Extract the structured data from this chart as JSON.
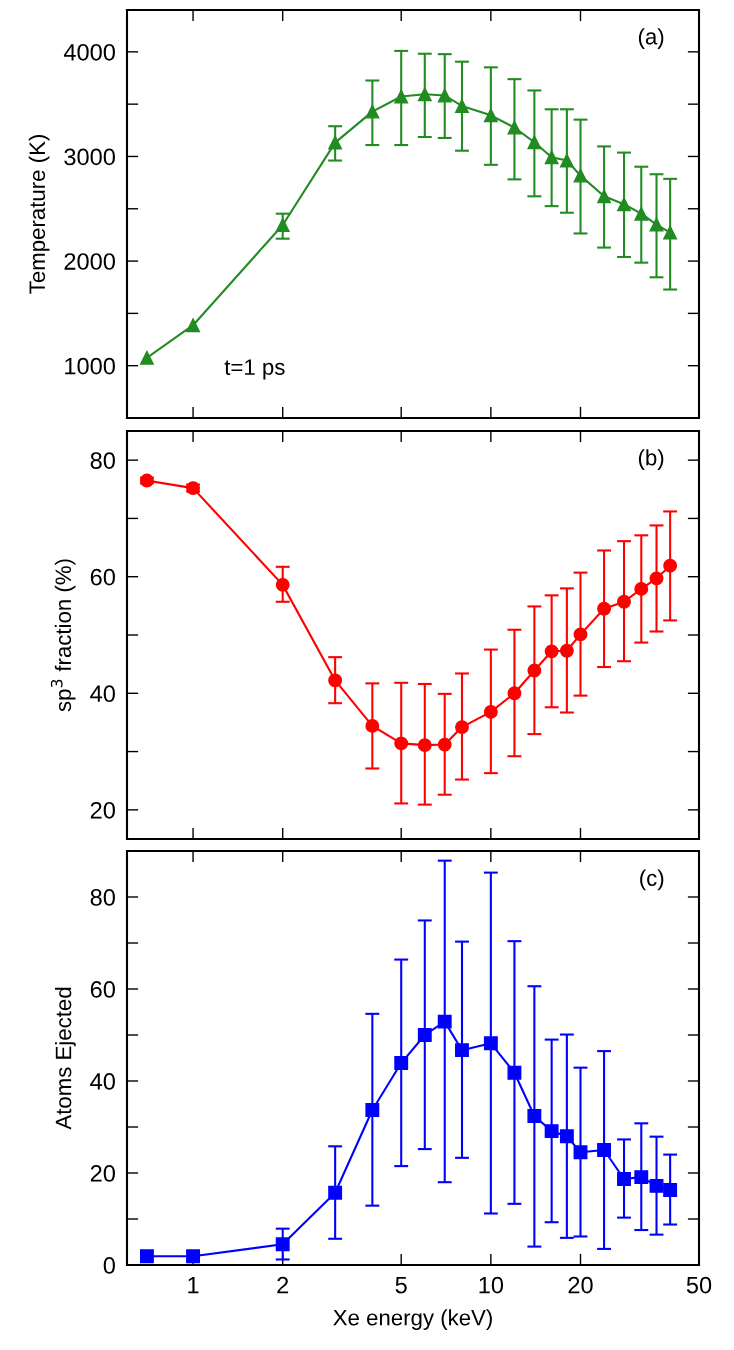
{
  "chart_data": [
    {
      "type": "line",
      "ylabel": "Temperature (K)",
      "annotations": [
        "(a)",
        "t=1 ps"
      ],
      "x": [
        0.7,
        1,
        2,
        3,
        4,
        5,
        6,
        7,
        8,
        10,
        12,
        14,
        16,
        18,
        20,
        24,
        28,
        32,
        36,
        40
      ],
      "series": [
        {
          "color": "#228b22",
          "marker": "triangle",
          "values": [
            1076,
            1387,
            2345,
            3132,
            3429,
            3573,
            3595,
            3582,
            3483,
            3393,
            3276,
            3136,
            2992,
            2961,
            2817,
            2619,
            2543,
            2453,
            2349,
            2273
          ],
          "errors": [
            null,
            null,
            [
              2214,
              2453
            ],
            [
              2961,
              3289
            ],
            [
              3109,
              3726
            ],
            [
              3109,
              4009
            ],
            [
              3186,
              3982
            ],
            [
              3177,
              3978
            ],
            [
              3055,
              3906
            ],
            [
              2920,
              3852
            ],
            [
              2781,
              3739
            ],
            [
              2619,
              3631
            ],
            [
              2525,
              3451
            ],
            [
              2462,
              3451
            ],
            [
              2264,
              3352
            ],
            [
              2129,
              3096
            ],
            [
              2039,
              3037
            ],
            [
              1985,
              2902
            ],
            [
              1845,
              2830
            ],
            [
              1728,
              2786
            ]
          ]
        }
      ],
      "log": "x",
      "xlim": [
        0.6,
        50
      ],
      "xticks": [
        1,
        2,
        5,
        10,
        20,
        50
      ],
      "ylim": [
        500,
        4400
      ],
      "yticks": [
        {
          "value": 500,
          "label": null
        },
        1000,
        {
          "value": 1500,
          "label": null
        },
        2000,
        {
          "value": 2500,
          "label": null
        },
        3000,
        {
          "value": 3500,
          "label": null
        },
        4000
      ],
      "tick_labels": "y",
      "grid": false,
      "legend": false
    },
    {
      "type": "line",
      "ylabel": "sp$^{3}$ fraction (%)",
      "annotations": [
        "(b)"
      ],
      "x": [
        0.7,
        1,
        2,
        3,
        4,
        5,
        6,
        7,
        8,
        10,
        12,
        14,
        16,
        18,
        20,
        24,
        28,
        32,
        36,
        40
      ],
      "series": [
        {
          "color": "#ff0000",
          "marker": "circle",
          "values": [
            76.5,
            75.2,
            58.6,
            42.2,
            34.4,
            31.4,
            31.1,
            31.2,
            34.2,
            36.8,
            40.0,
            43.9,
            47.2,
            47.3,
            50.1,
            54.5,
            55.7,
            57.9,
            59.7,
            61.9
          ],
          "errors": [
            [
              76.0,
              77.0
            ],
            [
              74.6,
              75.8
            ],
            [
              55.7,
              61.7
            ],
            [
              38.3,
              46.2
            ],
            [
              27.1,
              41.7
            ],
            [
              21.1,
              41.8
            ],
            [
              20.9,
              41.6
            ],
            [
              22.6,
              39.9
            ],
            [
              25.2,
              43.4
            ],
            [
              26.3,
              47.5
            ],
            [
              29.2,
              50.9
            ],
            [
              33.0,
              54.9
            ],
            [
              37.6,
              56.8
            ],
            [
              36.7,
              58.0
            ],
            [
              39.6,
              60.7
            ],
            [
              44.5,
              64.5
            ],
            [
              45.5,
              66.1
            ],
            [
              48.7,
              67.1
            ],
            [
              50.6,
              68.8
            ],
            [
              52.5,
              71.2
            ]
          ]
        }
      ],
      "log": "x",
      "xlim": [
        0.6,
        50
      ],
      "xticks": [
        1,
        2,
        5,
        10,
        20,
        50
      ],
      "ylim": [
        15,
        85
      ],
      "yticks": [
        20,
        {
          "value": 30,
          "label": null
        },
        40,
        {
          "value": 50,
          "label": null
        },
        60,
        {
          "value": 70,
          "label": null
        },
        80
      ],
      "tick_labels": "y",
      "grid": false,
      "legend": false
    },
    {
      "type": "line",
      "ylabel": "Atoms Ejected",
      "xlabel": "Xe energy (keV)",
      "annotations": [
        "(c)"
      ],
      "x": [
        0.7,
        1,
        2,
        3,
        4,
        5,
        6,
        7,
        8,
        10,
        12,
        14,
        16,
        18,
        20,
        24,
        28,
        32,
        36,
        40
      ],
      "series": [
        {
          "color": "#0000ff",
          "marker": "square",
          "values": [
            1.9,
            1.9,
            4.5,
            15.7,
            33.7,
            43.9,
            50.0,
            52.9,
            46.7,
            48.2,
            41.8,
            32.4,
            29.1,
            28.0,
            24.5,
            25.0,
            18.7,
            19.1,
            17.2,
            16.3
          ],
          "errors": [
            null,
            null,
            [
              1.2,
              7.9
            ],
            [
              5.7,
              25.8
            ],
            [
              12.9,
              54.6
            ],
            [
              21.5,
              66.4
            ],
            [
              25.2,
              74.9
            ],
            [
              18.0,
              87.9
            ],
            [
              23.3,
              70.3
            ],
            [
              11.2,
              85.3
            ],
            [
              13.3,
              70.4
            ],
            [
              4.0,
              60.6
            ],
            [
              9.3,
              49.0
            ],
            [
              5.9,
              50.1
            ],
            [
              6.2,
              42.9
            ],
            [
              3.5,
              46.5
            ],
            [
              10.3,
              27.3
            ],
            [
              7.6,
              30.8
            ],
            [
              6.6,
              27.9
            ],
            [
              8.8,
              24.0
            ]
          ]
        }
      ],
      "log": "x",
      "xlim": [
        0.6,
        50
      ],
      "xticks": [
        1,
        2,
        5,
        10,
        20,
        50
      ],
      "ylim": [
        0,
        90
      ],
      "yticks": [
        0,
        {
          "value": 10,
          "label": null
        },
        20,
        {
          "value": 30,
          "label": null
        },
        40,
        {
          "value": 50,
          "label": null
        },
        60,
        {
          "value": 70,
          "label": null
        },
        80
      ],
      "grid": false,
      "legend": false
    }
  ]
}
